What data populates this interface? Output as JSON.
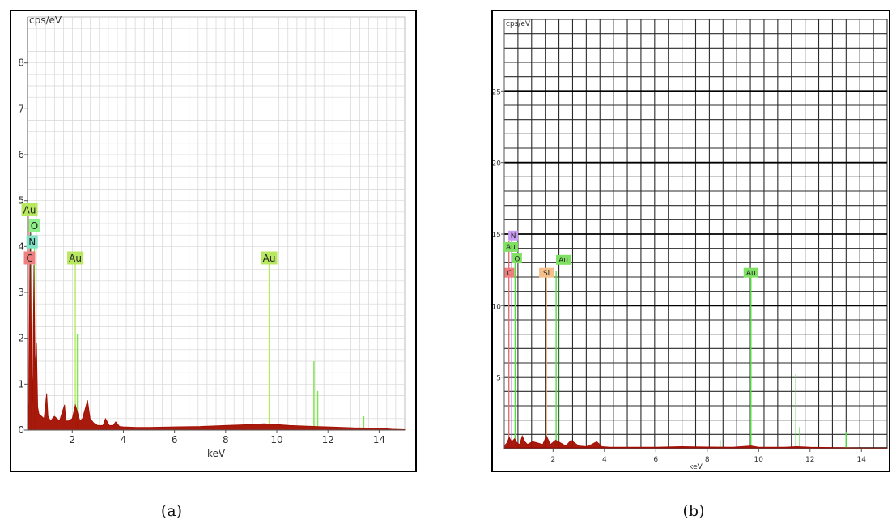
{
  "captions": {
    "a": "(a)",
    "b": "(b)"
  },
  "chart_data": [
    {
      "type": "line",
      "panel": "a",
      "ylabel": "cps/eV",
      "xlabel": "keV",
      "xlim": [
        0.25,
        15.0
      ],
      "ylim": [
        0,
        9
      ],
      "xticks": [
        2,
        4,
        6,
        8,
        10,
        12,
        14
      ],
      "yticks": [
        0,
        1,
        2,
        3,
        4,
        5,
        6,
        7,
        8
      ],
      "grid": true,
      "colors": {
        "spectrum": "#a30e00",
        "line_au": "#b8e860",
        "line_green": "#7fe64f",
        "line_o": "#7fe64f",
        "line_n": "#55d7b0",
        "line_c": "#e07070",
        "grid": "#d6d6d6",
        "badge_au": "#b8e860",
        "badge_o": "#8ef08a",
        "badge_n": "#7fe4c7",
        "badge_c": "#ef7f7f"
      },
      "spectrum": {
        "x": [
          0.25,
          0.3,
          0.35,
          0.4,
          0.45,
          0.5,
          0.55,
          0.6,
          0.65,
          0.7,
          0.8,
          0.9,
          1.0,
          1.05,
          1.15,
          1.3,
          1.5,
          1.7,
          1.75,
          1.85,
          2.0,
          2.12,
          2.2,
          2.3,
          2.4,
          2.5,
          2.6,
          2.7,
          2.85,
          3.0,
          3.2,
          3.3,
          3.45,
          3.6,
          3.7,
          3.85,
          4.0,
          4.5,
          5.0,
          6.0,
          7.0,
          8.0,
          9.0,
          9.5,
          10.0,
          10.5,
          11.0,
          11.5,
          12.0,
          13.0,
          14.0,
          14.5,
          15.0
        ],
        "y": [
          0.1,
          0.6,
          4.5,
          2.0,
          0.6,
          3.6,
          1.3,
          1.9,
          0.5,
          0.35,
          0.3,
          0.25,
          0.8,
          0.3,
          0.2,
          0.3,
          0.2,
          0.55,
          0.2,
          0.2,
          0.25,
          0.55,
          0.4,
          0.2,
          0.25,
          0.45,
          0.65,
          0.25,
          0.15,
          0.1,
          0.1,
          0.25,
          0.1,
          0.1,
          0.18,
          0.08,
          0.07,
          0.06,
          0.06,
          0.07,
          0.08,
          0.1,
          0.12,
          0.14,
          0.12,
          0.1,
          0.09,
          0.08,
          0.07,
          0.05,
          0.04,
          0.02,
          0.01
        ]
      },
      "lines": [
        {
          "x": 0.28,
          "y": 4.8,
          "color": "line_c"
        },
        {
          "x": 0.39,
          "y": 4.3,
          "color": "line_n"
        },
        {
          "x": 0.52,
          "y": 4.0,
          "color": "line_o"
        },
        {
          "x": 2.12,
          "y": 3.7,
          "color": "line_au"
        },
        {
          "x": 2.2,
          "y": 2.1,
          "color": "line_green"
        },
        {
          "x": 9.7,
          "y": 3.7,
          "color": "line_au"
        },
        {
          "x": 11.45,
          "y": 1.5,
          "color": "line_green"
        },
        {
          "x": 11.6,
          "y": 0.85,
          "color": "line_green"
        },
        {
          "x": 13.4,
          "y": 0.3,
          "color": "line_green"
        }
      ],
      "element_labels": [
        {
          "text": "C",
          "x": 0.33,
          "y": 3.75,
          "badge": "badge_c"
        },
        {
          "text": "N",
          "x": 0.43,
          "y": 4.1,
          "badge": "badge_n"
        },
        {
          "text": "O",
          "x": 0.52,
          "y": 4.45,
          "badge": "badge_o"
        },
        {
          "text": "Au",
          "x": 0.33,
          "y": 4.8,
          "badge": "badge_au"
        },
        {
          "text": "Au",
          "x": 2.12,
          "y": 3.75,
          "badge": "badge_au"
        },
        {
          "text": "Au",
          "x": 9.7,
          "y": 3.75,
          "badge": "badge_au"
        }
      ]
    },
    {
      "type": "line",
      "panel": "b",
      "ylabel": "cps/eV",
      "xlabel": "keV",
      "xlim": [
        0.1,
        15.0
      ],
      "ylim": [
        0,
        30
      ],
      "xticks": [
        2,
        4,
        6,
        8,
        10,
        12,
        14
      ],
      "yticks": [
        5,
        10,
        15,
        20,
        25
      ],
      "grid": true,
      "colors": {
        "spectrum": "#a30e00",
        "line_au": "#55dd44",
        "line_c": "#e07070",
        "line_n": "#b070f0",
        "line_o": "#55dd44",
        "line_si": "#f0a050",
        "grid": "#2a2a2a",
        "badge_au": "#7fe064",
        "badge_o": "#7fe064",
        "badge_n": "#c89cf0",
        "badge_c": "#ef7f7f",
        "badge_si": "#f5c08a"
      },
      "spectrum": {
        "x": [
          0.1,
          0.2,
          0.3,
          0.35,
          0.4,
          0.5,
          0.6,
          0.7,
          0.8,
          0.9,
          1.0,
          1.2,
          1.4,
          1.6,
          1.74,
          1.9,
          2.1,
          2.3,
          2.5,
          2.7,
          3.0,
          3.3,
          3.5,
          3.7,
          3.9,
          4.2,
          5.0,
          6.0,
          7.0,
          8.0,
          9.0,
          9.7,
          10.0,
          11.0,
          11.5,
          12.0,
          13.0,
          14.0,
          15.0
        ],
        "y": [
          0.2,
          0.4,
          0.8,
          0.6,
          0.5,
          0.7,
          0.4,
          0.3,
          0.9,
          0.5,
          0.3,
          0.5,
          0.4,
          0.3,
          0.9,
          0.3,
          0.6,
          0.4,
          0.2,
          0.6,
          0.2,
          0.15,
          0.3,
          0.5,
          0.15,
          0.1,
          0.1,
          0.1,
          0.15,
          0.12,
          0.1,
          0.2,
          0.1,
          0.1,
          0.15,
          0.1,
          0.08,
          0.05,
          0.05
        ]
      },
      "lines": [
        {
          "x": 0.28,
          "y": 14.5,
          "color": "line_c"
        },
        {
          "x": 0.39,
          "y": 15.0,
          "color": "line_n"
        },
        {
          "x": 0.52,
          "y": 13.0,
          "color": "line_o"
        },
        {
          "x": 1.74,
          "y": 12.5,
          "color": "line_si"
        },
        {
          "x": 2.12,
          "y": 12.4,
          "color": "line_au"
        },
        {
          "x": 2.2,
          "y": 12.0,
          "color": "line_au"
        },
        {
          "x": 9.7,
          "y": 12.2,
          "color": "line_au"
        },
        {
          "x": 11.45,
          "y": 5.2,
          "color": "line_au"
        },
        {
          "x": 11.6,
          "y": 1.5,
          "color": "line_au"
        },
        {
          "x": 13.4,
          "y": 1.2,
          "color": "line_au"
        },
        {
          "x": 8.5,
          "y": 0.6,
          "color": "line_au"
        }
      ],
      "element_labels": [
        {
          "text": "N",
          "x": 0.45,
          "y": 14.9,
          "badge": "badge_n"
        },
        {
          "text": "Au",
          "x": 0.35,
          "y": 14.1,
          "badge": "badge_au"
        },
        {
          "text": "O",
          "x": 0.6,
          "y": 13.3,
          "badge": "badge_o"
        },
        {
          "text": "C",
          "x": 0.3,
          "y": 12.3,
          "badge": "badge_c"
        },
        {
          "text": "Si",
          "x": 1.74,
          "y": 12.3,
          "badge": "badge_si"
        },
        {
          "text": "Au",
          "x": 2.4,
          "y": 13.2,
          "badge": "badge_au"
        },
        {
          "text": "Au",
          "x": 9.7,
          "y": 12.3,
          "badge": "badge_au"
        }
      ]
    }
  ]
}
